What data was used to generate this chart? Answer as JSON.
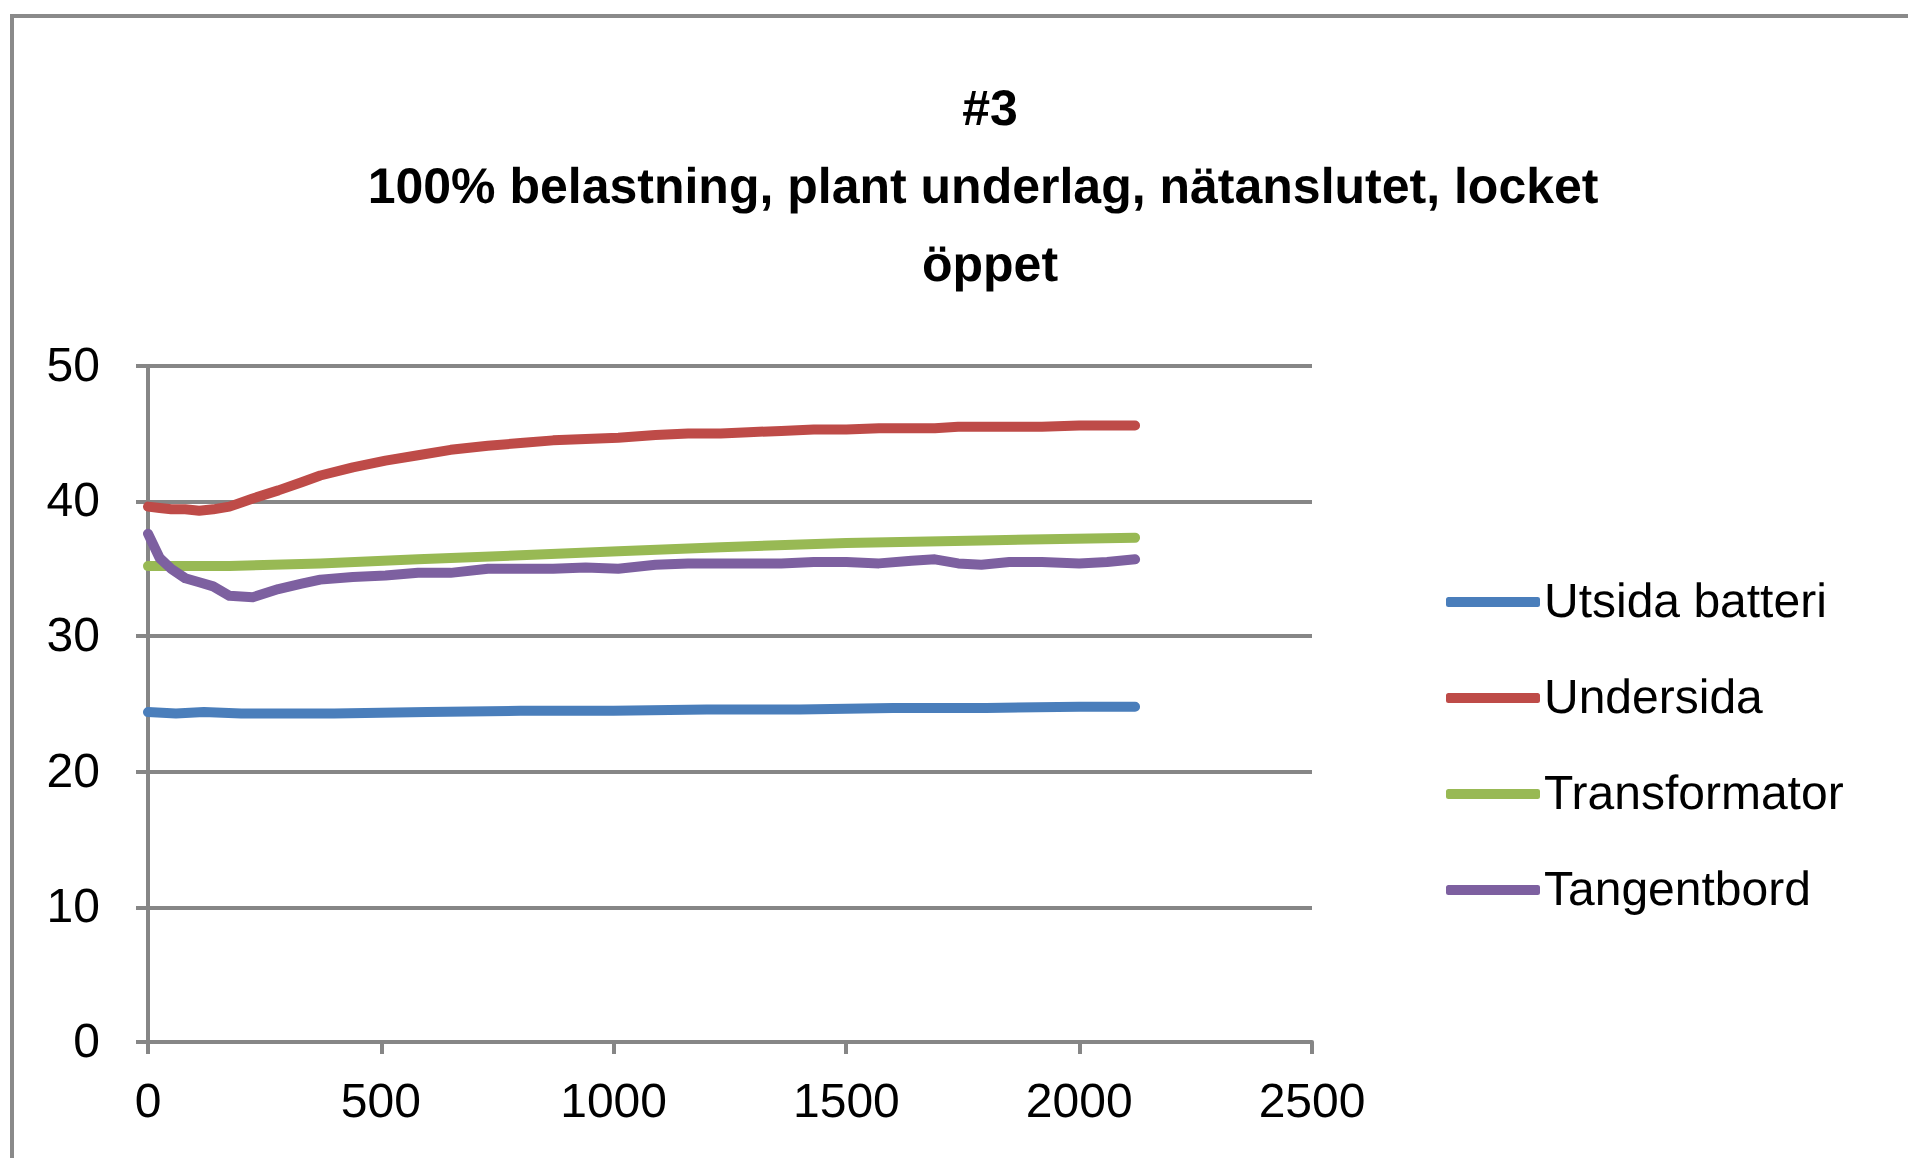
{
  "chart_data": {
    "type": "line",
    "title": "#3\n100% belastning, plant underlag, nätanslutet, locket öppet",
    "xlim": [
      0,
      2500
    ],
    "xticks": [
      0,
      500,
      1000,
      1500,
      2000,
      2500
    ],
    "ylim": [
      0,
      50
    ],
    "yticks": [
      0,
      10,
      20,
      30,
      40,
      50
    ],
    "grid": "y",
    "legend": "right",
    "series": [
      {
        "name": "Utsida batteri",
        "color": "#4a7ebb",
        "x": [
          0,
          60,
          120,
          200,
          400,
          600,
          800,
          1000,
          1200,
          1400,
          1600,
          1800,
          2000,
          2120
        ],
        "values": [
          24.4,
          24.3,
          24.4,
          24.3,
          24.3,
          24.4,
          24.5,
          24.5,
          24.6,
          24.6,
          24.7,
          24.7,
          24.8,
          24.8
        ]
      },
      {
        "name": "Undersida",
        "color": "#be4b48",
        "x": [
          0,
          25,
          50,
          80,
          110,
          140,
          175,
          225,
          280,
          330,
          370,
          440,
          510,
          580,
          650,
          730,
          800,
          870,
          940,
          1010,
          1090,
          1160,
          1230,
          1290,
          1360,
          1430,
          1500,
          1570,
          1640,
          1690,
          1740,
          1790,
          1850,
          1920,
          2000,
          2060,
          2120
        ],
        "values": [
          39.6,
          39.5,
          39.4,
          39.4,
          39.3,
          39.4,
          39.6,
          40.2,
          40.8,
          41.4,
          41.9,
          42.5,
          43.0,
          43.4,
          43.8,
          44.1,
          44.3,
          44.5,
          44.6,
          44.7,
          44.9,
          45.0,
          45.0,
          45.1,
          45.2,
          45.3,
          45.3,
          45.4,
          45.4,
          45.4,
          45.5,
          45.5,
          45.5,
          45.5,
          45.6,
          45.6,
          45.6
        ]
      },
      {
        "name": "Transformator",
        "color": "#98b954",
        "x": [
          0,
          175,
          370,
          580,
          800,
          1010,
          1230,
          1500,
          1790,
          2120
        ],
        "values": [
          35.2,
          35.2,
          35.4,
          35.7,
          36.0,
          36.3,
          36.6,
          36.9,
          37.1,
          37.3
        ]
      },
      {
        "name": "Tangentbord",
        "color": "#7d60a0",
        "x": [
          0,
          25,
          50,
          80,
          110,
          140,
          175,
          225,
          280,
          330,
          370,
          440,
          510,
          580,
          650,
          730,
          800,
          870,
          940,
          1010,
          1090,
          1160,
          1230,
          1290,
          1360,
          1430,
          1500,
          1570,
          1640,
          1690,
          1740,
          1790,
          1850,
          1920,
          2000,
          2060,
          2120
        ],
        "values": [
          37.6,
          35.8,
          35.0,
          34.3,
          34.0,
          33.7,
          33.0,
          32.9,
          33.5,
          33.9,
          34.2,
          34.4,
          34.5,
          34.7,
          34.7,
          35.0,
          35.0,
          35.0,
          35.1,
          35.0,
          35.3,
          35.4,
          35.4,
          35.4,
          35.4,
          35.5,
          35.5,
          35.4,
          35.6,
          35.7,
          35.4,
          35.3,
          35.5,
          35.5,
          35.4,
          35.5,
          35.7
        ]
      }
    ]
  }
}
